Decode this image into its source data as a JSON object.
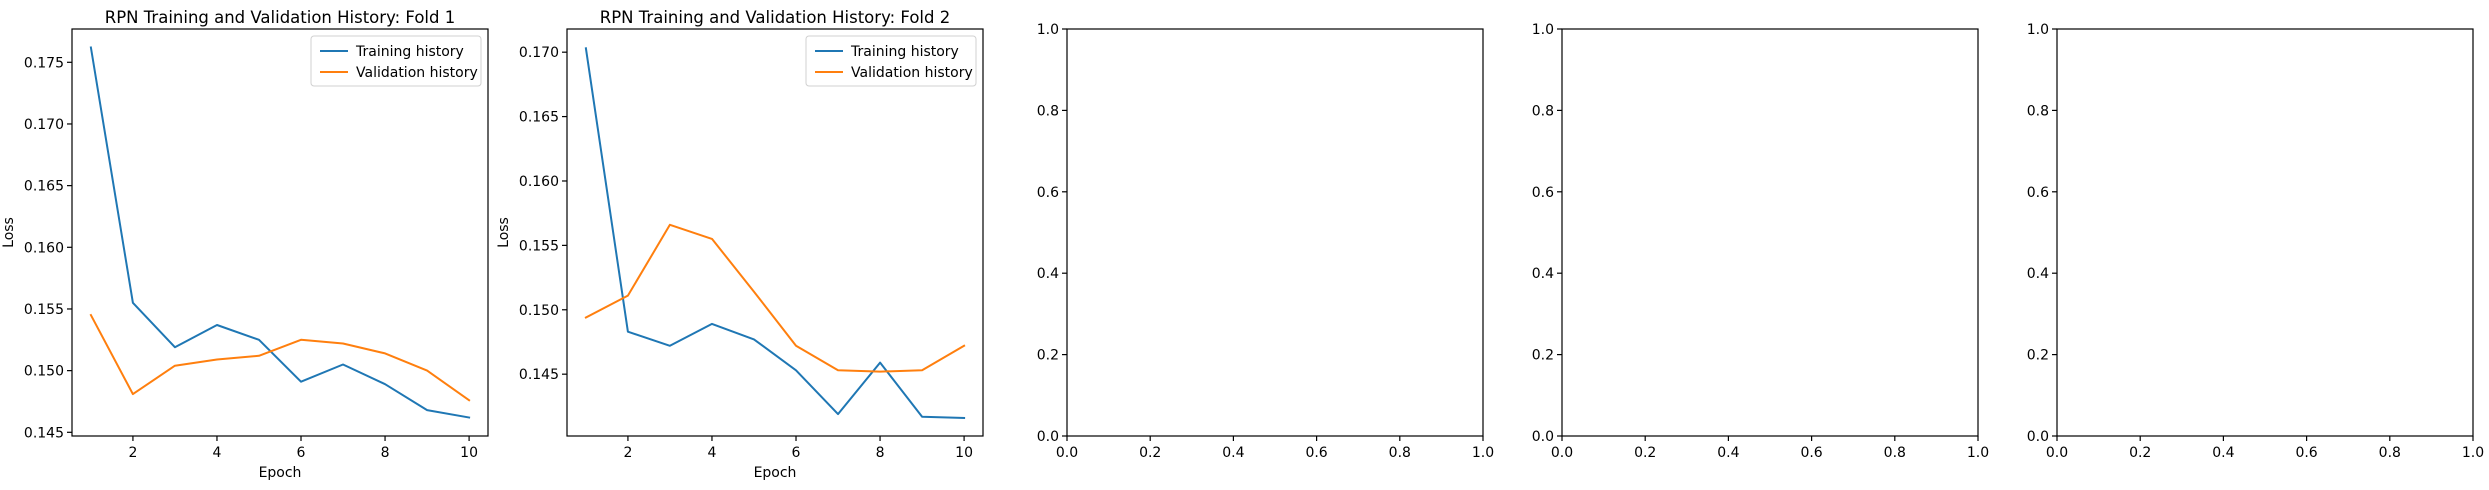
{
  "chart_data": [
    {
      "type": "line",
      "title": "RPN Training and Validation History: Fold 1",
      "xlabel": "Epoch",
      "ylabel": "Loss",
      "x": [
        1,
        2,
        3,
        4,
        5,
        6,
        7,
        8,
        9,
        10
      ],
      "xlim": [
        0.55,
        10.45
      ],
      "ylim": [
        0.1447,
        0.1777
      ],
      "xticks": [
        2,
        4,
        6,
        8,
        10
      ],
      "yticks": [
        0.145,
        0.15,
        0.155,
        0.16,
        0.165,
        0.17,
        0.175
      ],
      "ytick_labels": [
        "0.145",
        "0.150",
        "0.155",
        "0.160",
        "0.165",
        "0.170",
        "0.175"
      ],
      "legend": "top-right",
      "grid": false,
      "series": [
        {
          "name": "Training history",
          "color": "#1f77b4",
          "values": [
            0.1762,
            0.1555,
            0.1519,
            0.1537,
            0.1525,
            0.1491,
            0.1505,
            0.1489,
            0.1468,
            0.1462
          ]
        },
        {
          "name": "Validation history",
          "color": "#ff7f0e",
          "values": [
            0.1545,
            0.1481,
            0.1504,
            0.1509,
            0.1512,
            0.1525,
            0.1522,
            0.1514,
            0.15,
            0.1476
          ]
        }
      ]
    },
    {
      "type": "line",
      "title": "RPN Training and Validation History: Fold 2",
      "xlabel": "Epoch",
      "ylabel": "Loss",
      "x": [
        1,
        2,
        3,
        4,
        5,
        6,
        7,
        8,
        9,
        10
      ],
      "xlim": [
        0.55,
        10.45
      ],
      "ylim": [
        0.1402,
        0.1718
      ],
      "xticks": [
        2,
        4,
        6,
        8,
        10
      ],
      "yticks": [
        0.145,
        0.15,
        0.155,
        0.16,
        0.165,
        0.17
      ],
      "ytick_labels": [
        "0.145",
        "0.150",
        "0.155",
        "0.160",
        "0.165",
        "0.170"
      ],
      "legend": "top-right",
      "grid": false,
      "series": [
        {
          "name": "Training history",
          "color": "#1f77b4",
          "values": [
            0.1703,
            0.1483,
            0.1472,
            0.1489,
            0.1477,
            0.1453,
            0.1419,
            0.1459,
            0.1417,
            0.1416
          ]
        },
        {
          "name": "Validation history",
          "color": "#ff7f0e",
          "values": [
            0.1494,
            0.1511,
            0.1566,
            0.1555,
            0.1514,
            0.1472,
            0.1453,
            0.1452,
            0.1453,
            0.1472
          ]
        }
      ]
    },
    {
      "type": "line",
      "title": "",
      "xlabel": "",
      "ylabel": "",
      "series": [],
      "xlim": [
        0,
        1
      ],
      "ylim": [
        0,
        1
      ],
      "xticks": [
        0,
        0.2,
        0.4,
        0.6,
        0.8,
        1.0
      ],
      "xtick_labels": [
        "0.0",
        "0.2",
        "0.4",
        "0.6",
        "0.8",
        "1.0"
      ],
      "yticks": [
        0,
        0.2,
        0.4,
        0.6,
        0.8,
        1.0
      ],
      "ytick_labels": [
        "0.0",
        "0.2",
        "0.4",
        "0.6",
        "0.8",
        "1.0"
      ]
    },
    {
      "type": "line",
      "title": "",
      "xlabel": "",
      "ylabel": "",
      "series": [],
      "xlim": [
        0,
        1
      ],
      "ylim": [
        0,
        1
      ],
      "xticks": [
        0,
        0.2,
        0.4,
        0.6,
        0.8,
        1.0
      ],
      "xtick_labels": [
        "0.0",
        "0.2",
        "0.4",
        "0.6",
        "0.8",
        "1.0"
      ],
      "yticks": [
        0,
        0.2,
        0.4,
        0.6,
        0.8,
        1.0
      ],
      "ytick_labels": [
        "0.0",
        "0.2",
        "0.4",
        "0.6",
        "0.8",
        "1.0"
      ]
    },
    {
      "type": "line",
      "title": "",
      "xlabel": "",
      "ylabel": "",
      "series": [],
      "xlim": [
        0,
        1
      ],
      "ylim": [
        0,
        1
      ],
      "xticks": [
        0,
        0.2,
        0.4,
        0.6,
        0.8,
        1.0
      ],
      "xtick_labels": [
        "0.0",
        "0.2",
        "0.4",
        "0.6",
        "0.8",
        "1.0"
      ],
      "yticks": [
        0,
        0.2,
        0.4,
        0.6,
        0.8,
        1.0
      ],
      "ytick_labels": [
        "0.0",
        "0.2",
        "0.4",
        "0.6",
        "0.8",
        "1.0"
      ]
    }
  ]
}
